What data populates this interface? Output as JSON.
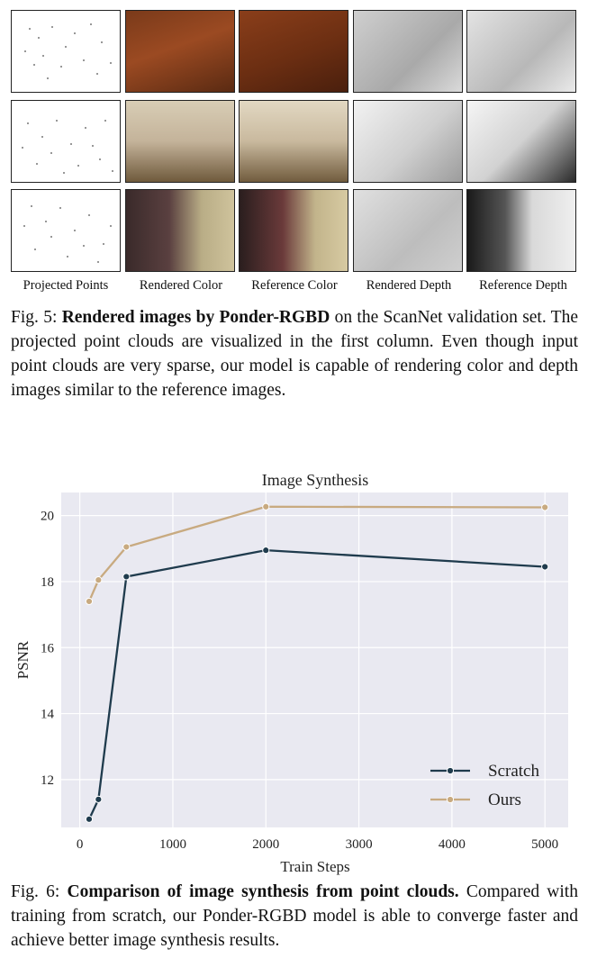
{
  "figure5": {
    "column_labels": [
      "Projected Points",
      "Rendered Color",
      "Reference Color",
      "Rendered Depth",
      "Reference Depth"
    ],
    "caption_prefix": "Fig. 5: ",
    "caption_bold": "Rendered images by Ponder-RGBD",
    "caption_rest": " on the ScanNet validation set. The projected point clouds are visualized in the first column. Even though input point clouds are very sparse, our model is capable of rendering color and depth images similar to the reference images."
  },
  "figure6": {
    "caption_prefix": "Fig. 6: ",
    "caption_bold": "Comparison of image synthesis from point clouds.",
    "caption_rest": " Compared with training from scratch, our Ponder-RGBD model is able to converge faster and achieve better image synthesis results."
  },
  "colors": {
    "scratch": "#1f3b4d",
    "ours": "#c8aa80",
    "plot_bg": "#e9e9f1"
  },
  "chart_data": {
    "type": "line",
    "title": "Image Synthesis",
    "xlabel": "Train Steps",
    "ylabel": "PSNR",
    "xlim": [
      -200,
      5250
    ],
    "ylim": [
      10.55,
      20.7
    ],
    "xticks": [
      0,
      1000,
      2000,
      3000,
      4000,
      5000
    ],
    "yticks": [
      12,
      14,
      16,
      18,
      20
    ],
    "grid": true,
    "legend_position": "lower-right",
    "series": [
      {
        "name": "Scratch",
        "x": [
          100,
          200,
          500,
          2000,
          5000
        ],
        "y": [
          10.8,
          11.4,
          18.15,
          18.95,
          18.45
        ]
      },
      {
        "name": "Ours",
        "x": [
          100,
          200,
          500,
          2000,
          5000
        ],
        "y": [
          17.4,
          18.05,
          19.05,
          20.27,
          20.25
        ]
      }
    ]
  }
}
